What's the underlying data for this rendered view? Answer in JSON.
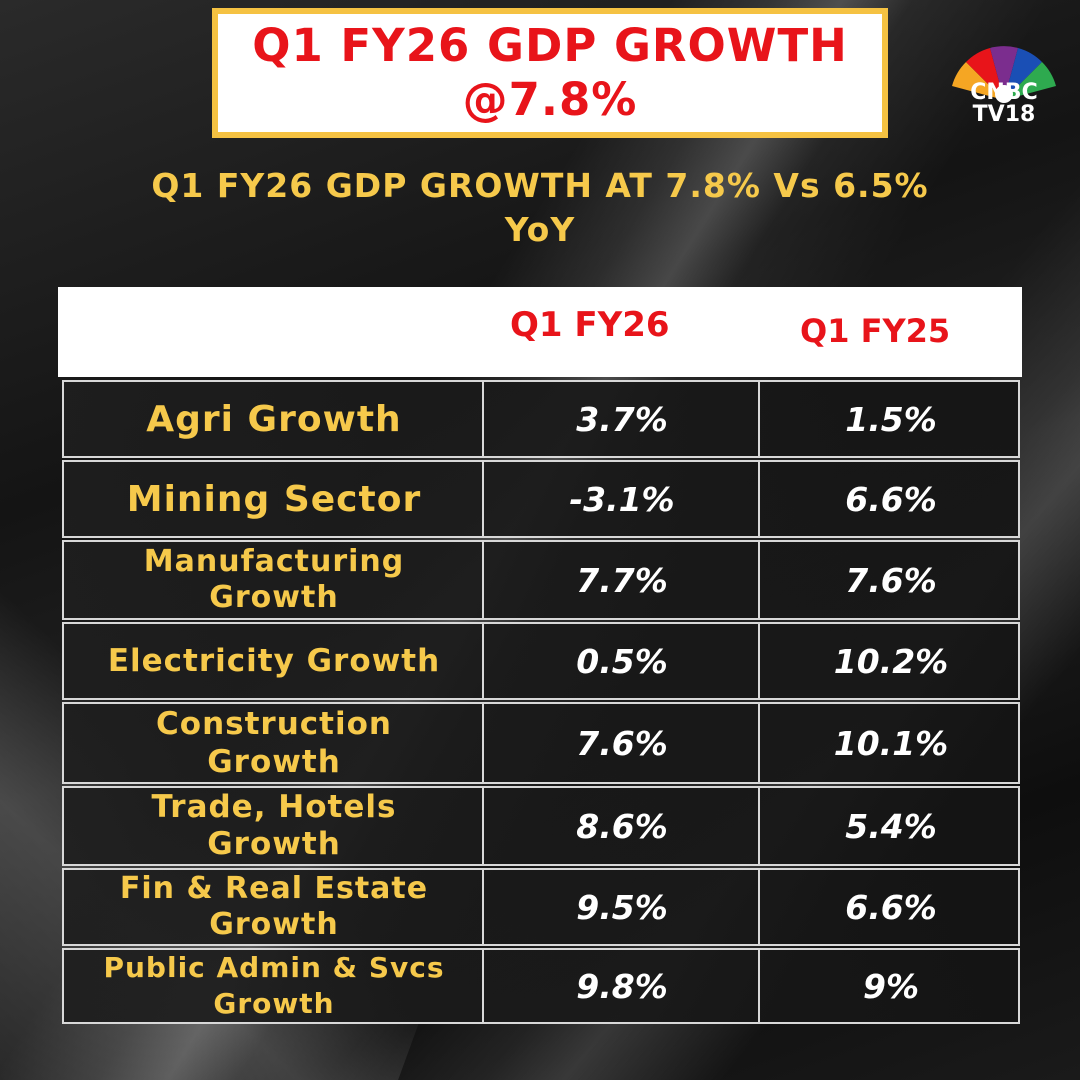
{
  "header": {
    "title_line1": "Q1 FY26 GDP GROWTH",
    "title_line2": "@7.8%",
    "subtitle_line1": "Q1 FY26 GDP GROWTH AT 7.8% Vs 6.5%",
    "subtitle_line2": "YoY"
  },
  "logo": {
    "line1": "CNBC",
    "line2": "TV18",
    "colors": [
      "#f5a623",
      "#e8141a",
      "#7b2d8e",
      "#1a4fb5",
      "#2eaa4f",
      "#f1d51c"
    ]
  },
  "table": {
    "columns": [
      "Q1 FY26",
      "Q1 FY25"
    ],
    "rows": [
      {
        "label1": "Agri Growth",
        "label2": "",
        "q1fy26": "3.7%",
        "q1fy25": "1.5%"
      },
      {
        "label1": "Mining Sector",
        "label2": "",
        "q1fy26": "-3.1%",
        "q1fy25": "6.6%"
      },
      {
        "label1": "Manufacturing",
        "label2": "Growth",
        "q1fy26": "7.7%",
        "q1fy25": "7.6%"
      },
      {
        "label1": "Electricity Growth",
        "label2": "",
        "q1fy26": "0.5%",
        "q1fy25": "10.2%"
      },
      {
        "label1": "Construction",
        "label2": "Growth",
        "q1fy26": "7.6%",
        "q1fy25": "10.1%"
      },
      {
        "label1": "Trade, Hotels",
        "label2": "Growth",
        "q1fy26": "8.6%",
        "q1fy25": "5.4%"
      },
      {
        "label1": "Fin & Real Estate",
        "label2": "Growth",
        "q1fy26": "9.5%",
        "q1fy25": "6.6%"
      },
      {
        "label1": "Public Admin & Svcs",
        "label2": "Growth",
        "q1fy26": "9.8%",
        "q1fy25": "9%"
      }
    ]
  }
}
